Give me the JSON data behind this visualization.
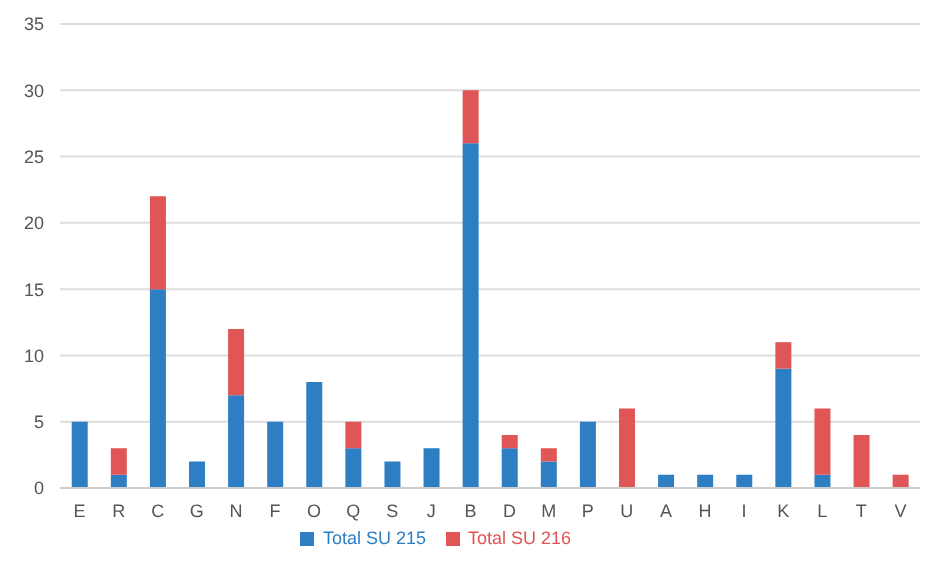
{
  "chart_data": {
    "type": "bar",
    "stacked": true,
    "categories": [
      "E",
      "R",
      "C",
      "G",
      "N",
      "F",
      "O",
      "Q",
      "S",
      "J",
      "B",
      "D",
      "M",
      "P",
      "U",
      "A",
      "H",
      "I",
      "K",
      "L",
      "T",
      "V"
    ],
    "series": [
      {
        "name": "Total SU 215",
        "color": "#2e7ec4",
        "values": [
          5,
          1,
          15,
          2,
          7,
          5,
          8,
          3,
          2,
          3,
          26,
          3,
          2,
          5,
          0,
          1,
          1,
          1,
          9,
          1,
          0,
          0
        ]
      },
      {
        "name": "Total SU 216",
        "color": "#e05555",
        "values": [
          0,
          2,
          7,
          0,
          5,
          0,
          0,
          2,
          0,
          0,
          4,
          1,
          1,
          0,
          6,
          0,
          0,
          0,
          2,
          5,
          4,
          1
        ]
      }
    ],
    "ylim": [
      0,
      35
    ],
    "yticks": [
      0,
      5,
      10,
      15,
      20,
      25,
      30,
      35
    ],
    "grid": "y",
    "legend": "bottom"
  }
}
